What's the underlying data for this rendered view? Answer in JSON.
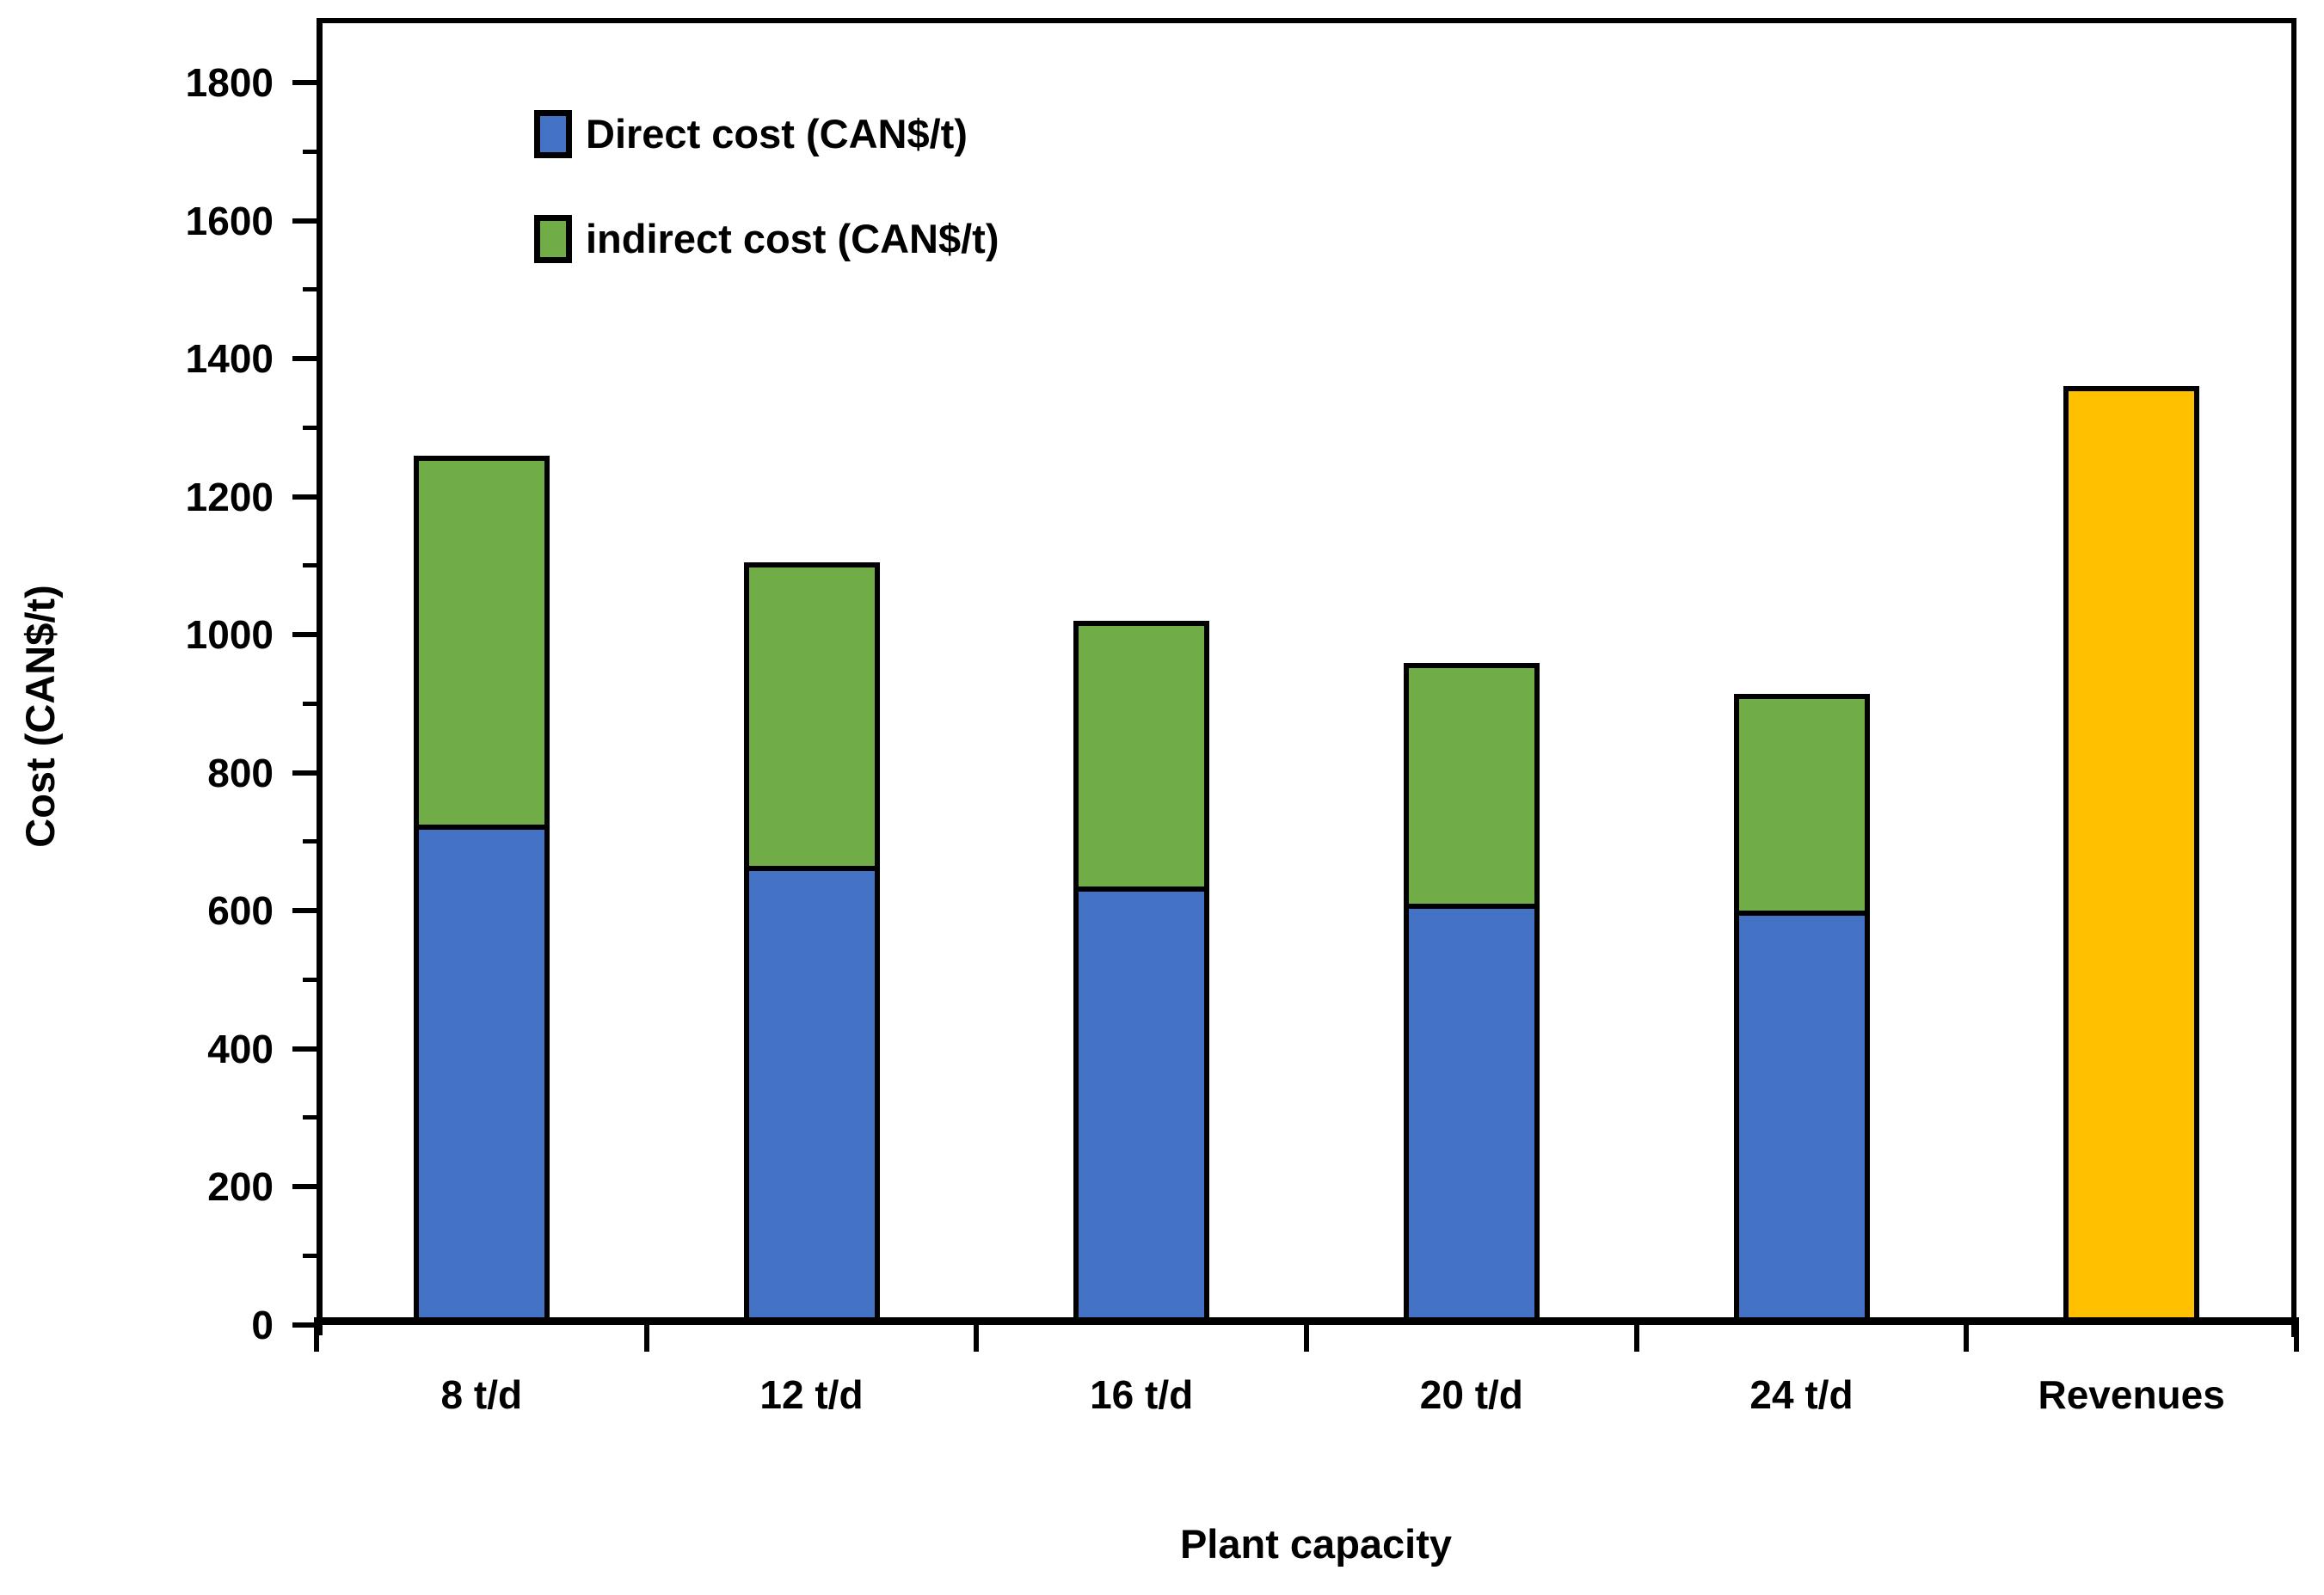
{
  "chart_data": {
    "type": "bar",
    "stacked": true,
    "categories": [
      "8 t/d",
      "12 t/d",
      "16 t/d",
      "20 t/d",
      "24 t/d",
      "Revenues"
    ],
    "series": [
      {
        "name": "Direct cost (CAN$/t)",
        "color": "#4472C4",
        "values": [
          725,
          665,
          635,
          610,
          600,
          0
        ]
      },
      {
        "name": "indirect cost (CAN$/t)",
        "color": "#70AD47",
        "values": [
          535,
          440,
          385,
          350,
          315,
          0
        ]
      },
      {
        "name": "Revenues",
        "color": "#FFC000",
        "values": [
          0,
          0,
          0,
          0,
          0,
          1360
        ],
        "in_legend": false
      }
    ],
    "stack_totals": [
      1260,
      1105,
      1020,
      960,
      915,
      1360
    ],
    "title": "",
    "xlabel": "Plant capacity",
    "ylabel": "Cost (CAN$/t)",
    "ylim": [
      0,
      1900
    ],
    "y_major_ticks": [
      0,
      200,
      400,
      600,
      800,
      1000,
      1200,
      1400,
      1600,
      1800
    ],
    "y_minor_ticks": [
      100,
      300,
      500,
      700,
      900,
      1100,
      1300,
      1500,
      1700
    ],
    "grid": false,
    "legend_position": "top-left-inside",
    "bar_border_color": "#000000",
    "axis_color": "#000000",
    "background_color": "#FFFFFF"
  }
}
